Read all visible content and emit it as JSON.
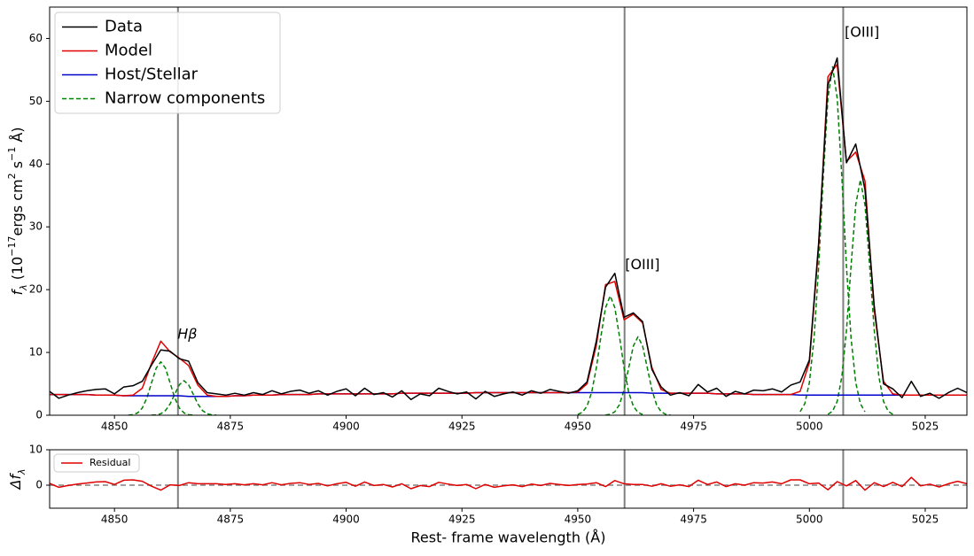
{
  "chart_data": [
    {
      "type": "line",
      "xlim": [
        4836,
        5034
      ],
      "ylim": [
        0,
        65
      ],
      "xticks": [
        4850,
        4875,
        4900,
        4925,
        4950,
        4975,
        5000,
        5025
      ],
      "yticks": [
        0,
        10,
        20,
        30,
        40,
        50,
        60
      ],
      "ylabel": [
        "f",
        {
          "text": "λ",
          "style": "sub"
        },
        " (10",
        {
          "text": "−17",
          "style": "sup"
        },
        "ergs cm",
        {
          "text": "2",
          "style": "sup"
        },
        " s",
        {
          "text": "−1",
          "style": "sup"
        },
        " Å)"
      ],
      "legend": "upper left",
      "vlines": [
        4863.7,
        4960.1,
        5007.3
      ],
      "annotations": [
        {
          "text": "Hβ",
          "x": 4863.6,
          "y": 12.8
        },
        {
          "text": "[OIII]",
          "x": 4960.2,
          "y": 23.9
        },
        {
          "text": "[OIII]",
          "x": 5007.6,
          "y": 60.9
        }
      ],
      "x": [
        4836,
        4838,
        4840,
        4842,
        4844,
        4846,
        4848,
        4850,
        4852,
        4854,
        4856,
        4858,
        4860,
        4862,
        4864,
        4866,
        4868,
        4870,
        4872,
        4874,
        4876,
        4878,
        4880,
        4882,
        4884,
        4886,
        4888,
        4890,
        4892,
        4894,
        4896,
        4898,
        4900,
        4902,
        4904,
        4906,
        4908,
        4910,
        4912,
        4914,
        4916,
        4918,
        4920,
        4922,
        4924,
        4926,
        4928,
        4930,
        4932,
        4934,
        4936,
        4938,
        4940,
        4942,
        4944,
        4946,
        4948,
        4950,
        4952,
        4954,
        4956,
        4958,
        4960,
        4962,
        4964,
        4966,
        4968,
        4970,
        4972,
        4974,
        4976,
        4978,
        4980,
        4982,
        4984,
        4986,
        4988,
        4990,
        4992,
        4994,
        4996,
        4998,
        5000,
        5002,
        5004,
        5006,
        5008,
        5010,
        5012,
        5014,
        5016,
        5018,
        5020,
        5022,
        5024,
        5026,
        5028,
        5030,
        5032,
        5034
      ],
      "series": [
        {
          "name": "Data",
          "color": "#000000",
          "style": "solid",
          "values": [
            3.8,
            2.7,
            3.2,
            3.6,
            3.9,
            4.1,
            4.2,
            3.4,
            4.5,
            4.7,
            5.4,
            8.0,
            10.4,
            10.2,
            9.0,
            8.6,
            5.2,
            3.6,
            3.4,
            3.2,
            3.5,
            3.2,
            3.6,
            3.3,
            3.9,
            3.4,
            3.8,
            4.0,
            3.5,
            3.9,
            3.2,
            3.8,
            4.2,
            3.1,
            4.3,
            3.3,
            3.6,
            2.9,
            3.9,
            2.5,
            3.4,
            3.1,
            4.3,
            3.8,
            3.4,
            3.7,
            2.6,
            3.8,
            3.0,
            3.4,
            3.7,
            3.2,
            3.9,
            3.5,
            4.1,
            3.8,
            3.5,
            3.9,
            5.3,
            11.8,
            20.4,
            22.6,
            15.6,
            16.3,
            14.9,
            7.3,
            4.5,
            3.2,
            3.6,
            3.1,
            4.9,
            3.7,
            4.3,
            3.0,
            3.8,
            3.4,
            4.0,
            3.9,
            4.2,
            3.7,
            4.8,
            5.3,
            8.8,
            27.5,
            52.6,
            56.9,
            40.2,
            43.2,
            35.9,
            17.4,
            5.0,
            4.2,
            2.8,
            5.4,
            3.0,
            3.5,
            2.7,
            3.6,
            4.3,
            3.6
          ]
        },
        {
          "name": "Model",
          "color": "#e00000",
          "style": "solid",
          "values": [
            3.3,
            3.3,
            3.3,
            3.3,
            3.3,
            3.2,
            3.2,
            3.2,
            3.1,
            3.2,
            4.3,
            8.3,
            11.8,
            10.1,
            9.1,
            7.9,
            4.8,
            3.2,
            3.0,
            3.0,
            3.1,
            3.1,
            3.2,
            3.2,
            3.2,
            3.3,
            3.3,
            3.3,
            3.3,
            3.4,
            3.4,
            3.4,
            3.4,
            3.4,
            3.4,
            3.4,
            3.4,
            3.4,
            3.5,
            3.5,
            3.5,
            3.5,
            3.5,
            3.5,
            3.5,
            3.5,
            3.6,
            3.6,
            3.6,
            3.6,
            3.6,
            3.6,
            3.6,
            3.6,
            3.6,
            3.6,
            3.6,
            3.7,
            5.0,
            11.1,
            20.8,
            21.3,
            15.2,
            16.1,
            14.7,
            7.6,
            4.1,
            3.5,
            3.5,
            3.5,
            3.5,
            3.5,
            3.4,
            3.4,
            3.4,
            3.4,
            3.3,
            3.3,
            3.3,
            3.3,
            3.3,
            3.8,
            8.4,
            26.9,
            53.9,
            55.9,
            40.4,
            41.9,
            37.3,
            16.7,
            5.4,
            3.4,
            3.2,
            3.2,
            3.2,
            3.2,
            3.2,
            3.2,
            3.2,
            3.2
          ]
        },
        {
          "name": "Host/Stellar",
          "color": "#0000cc",
          "style": "solid",
          "values": [
            3.3,
            3.3,
            3.3,
            3.3,
            3.3,
            3.2,
            3.2,
            3.2,
            3.1,
            3.1,
            3.1,
            3.1,
            3.1,
            3.1,
            3.1,
            3.0,
            3.0,
            3.0,
            3.0,
            3.0,
            3.1,
            3.1,
            3.2,
            3.2,
            3.2,
            3.3,
            3.3,
            3.3,
            3.3,
            3.4,
            3.4,
            3.4,
            3.4,
            3.4,
            3.4,
            3.4,
            3.4,
            3.4,
            3.5,
            3.5,
            3.5,
            3.5,
            3.5,
            3.5,
            3.5,
            3.5,
            3.6,
            3.6,
            3.6,
            3.6,
            3.6,
            3.6,
            3.6,
            3.6,
            3.6,
            3.6,
            3.6,
            3.6,
            3.6,
            3.6,
            3.6,
            3.6,
            3.6,
            3.6,
            3.6,
            3.5,
            3.5,
            3.5,
            3.5,
            3.5,
            3.5,
            3.5,
            3.4,
            3.4,
            3.4,
            3.4,
            3.3,
            3.3,
            3.3,
            3.3,
            3.3,
            3.2,
            3.2,
            3.2,
            3.2,
            3.2,
            3.2,
            3.2,
            3.2,
            3.2,
            3.2,
            3.2,
            3.2,
            3.2,
            3.2,
            3.2,
            3.2,
            3.2,
            3.2,
            3.2
          ]
        },
        {
          "name": "Narrow components",
          "color": "#008000",
          "style": "dashed",
          "components": [
            {
              "x": [
                4853,
                4854,
                4855,
                4856,
                4857,
                4858,
                4859,
                4860,
                4861,
                4862,
                4863,
                4864,
                4865,
                4866,
                4867
              ],
              "values": [
                0.02,
                0.09,
                0.37,
                1.15,
                2.76,
                5.16,
                7.5,
                8.5,
                7.5,
                5.16,
                2.76,
                1.15,
                0.37,
                0.09,
                0.02
              ]
            },
            {
              "x": [
                4858,
                4859,
                4860,
                4861,
                4862,
                4863,
                4864,
                4865,
                4866,
                4867,
                4868,
                4869,
                4870,
                4871,
                4872
              ],
              "values": [
                0.01,
                0.06,
                0.24,
                0.74,
                1.79,
                3.34,
                4.85,
                5.5,
                4.85,
                3.34,
                1.79,
                0.74,
                0.24,
                0.06,
                0.01
              ]
            },
            {
              "x": [
                4950,
                4951,
                4952,
                4953,
                4954,
                4955,
                4956,
                4957,
                4958,
                4959,
                4960,
                4961,
                4962,
                4963,
                4964
              ],
              "values": [
                0.11,
                0.46,
                1.44,
                3.65,
                7.5,
                12.58,
                17.14,
                19,
                17.14,
                12.58,
                7.5,
                3.65,
                1.44,
                0.46,
                0.11
              ]
            },
            {
              "x": [
                4956,
                4957,
                4958,
                4959,
                4960,
                4961,
                4962,
                4963,
                4964,
                4965,
                4966,
                4967,
                4968,
                4969,
                4970
              ],
              "values": [
                0.03,
                0.14,
                0.55,
                1.69,
                4.06,
                7.58,
                11.03,
                12.5,
                11.03,
                7.58,
                4.06,
                1.69,
                0.55,
                0.14,
                0.03
              ]
            },
            {
              "x": [
                4998,
                4999,
                5000,
                5001,
                5002,
                5003,
                5004,
                5005,
                5006,
                5007,
                5008,
                5009,
                5010,
                5011,
                5012
              ],
              "values": [
                0.56,
                1.83,
                5.22,
                12.21,
                23.7,
                38.02,
                50.5,
                55.5,
                50.5,
                38.02,
                23.7,
                12.21,
                5.22,
                1.83,
                0.56
              ]
            },
            {
              "x": [
                5004,
                5005,
                5006,
                5007,
                5008,
                5009,
                5010,
                5011,
                5012,
                5013,
                5014,
                5015,
                5016,
                5017,
                5018
              ],
              "values": [
                0.15,
                0.64,
                2.21,
                6.11,
                13.5,
                23.85,
                33.49,
                37.5,
                33.49,
                23.85,
                13.5,
                6.11,
                2.21,
                0.64,
                0.15
              ]
            }
          ]
        }
      ]
    },
    {
      "type": "line",
      "xlim": [
        4836,
        5034
      ],
      "ylim": [
        -6.5,
        10
      ],
      "xticks": [
        4850,
        4875,
        4900,
        4925,
        4950,
        4975,
        5000,
        5025
      ],
      "yticks": [
        0,
        10
      ],
      "ylabel": [
        "Δf",
        {
          "text": "λ",
          "style": "sub"
        }
      ],
      "xlabel": "Rest- frame wavelength (Å)",
      "legend": "upper left",
      "vlines": [
        4863.7,
        4960.1,
        5007.3
      ],
      "hline": 0,
      "x": [
        4836,
        4838,
        4840,
        4842,
        4844,
        4846,
        4848,
        4850,
        4852,
        4854,
        4856,
        4858,
        4860,
        4862,
        4864,
        4866,
        4868,
        4870,
        4872,
        4874,
        4876,
        4878,
        4880,
        4882,
        4884,
        4886,
        4888,
        4890,
        4892,
        4894,
        4896,
        4898,
        4900,
        4902,
        4904,
        4906,
        4908,
        4910,
        4912,
        4914,
        4916,
        4918,
        4920,
        4922,
        4924,
        4926,
        4928,
        4930,
        4932,
        4934,
        4936,
        4938,
        4940,
        4942,
        4944,
        4946,
        4948,
        4950,
        4952,
        4954,
        4956,
        4958,
        4960,
        4962,
        4964,
        4966,
        4968,
        4970,
        4972,
        4974,
        4976,
        4978,
        4980,
        4982,
        4984,
        4986,
        4988,
        4990,
        4992,
        4994,
        4996,
        4998,
        5000,
        5002,
        5004,
        5006,
        5008,
        5010,
        5012,
        5014,
        5016,
        5018,
        5020,
        5022,
        5024,
        5026,
        5028,
        5030,
        5032,
        5034
      ],
      "series": [
        {
          "name": "Residual",
          "color": "#e00000",
          "style": "solid",
          "values": [
            0.5,
            -0.6,
            -0.1,
            0.3,
            0.6,
            0.9,
            1.0,
            0.2,
            1.4,
            1.5,
            1.1,
            -0.3,
            -1.4,
            0.1,
            -0.1,
            0.7,
            0.4,
            0.4,
            0.4,
            0.2,
            0.4,
            0.1,
            0.4,
            0.1,
            0.7,
            0.1,
            0.5,
            0.7,
            0.2,
            0.5,
            -0.2,
            0.4,
            0.8,
            -0.3,
            0.9,
            -0.1,
            0.2,
            -0.5,
            0.4,
            -1.0,
            -0.1,
            -0.4,
            0.8,
            0.3,
            -0.1,
            0.2,
            -1.0,
            0.2,
            -0.6,
            -0.2,
            0.1,
            -0.4,
            0.3,
            -0.1,
            0.5,
            0.2,
            -0.1,
            0.2,
            0.3,
            0.7,
            -0.4,
            1.3,
            0.4,
            0.2,
            0.2,
            -0.3,
            0.4,
            -0.3,
            0.1,
            -0.4,
            1.4,
            0.2,
            0.9,
            -0.4,
            0.4,
            0.0,
            0.7,
            0.6,
            0.9,
            0.4,
            1.5,
            1.5,
            0.4,
            0.6,
            -1.3,
            1.0,
            -0.2,
            1.3,
            -1.4,
            0.7,
            -0.4,
            0.8,
            -0.4,
            2.2,
            -0.2,
            0.3,
            -0.5,
            0.4,
            1.1,
            0.4
          ]
        }
      ]
    }
  ]
}
